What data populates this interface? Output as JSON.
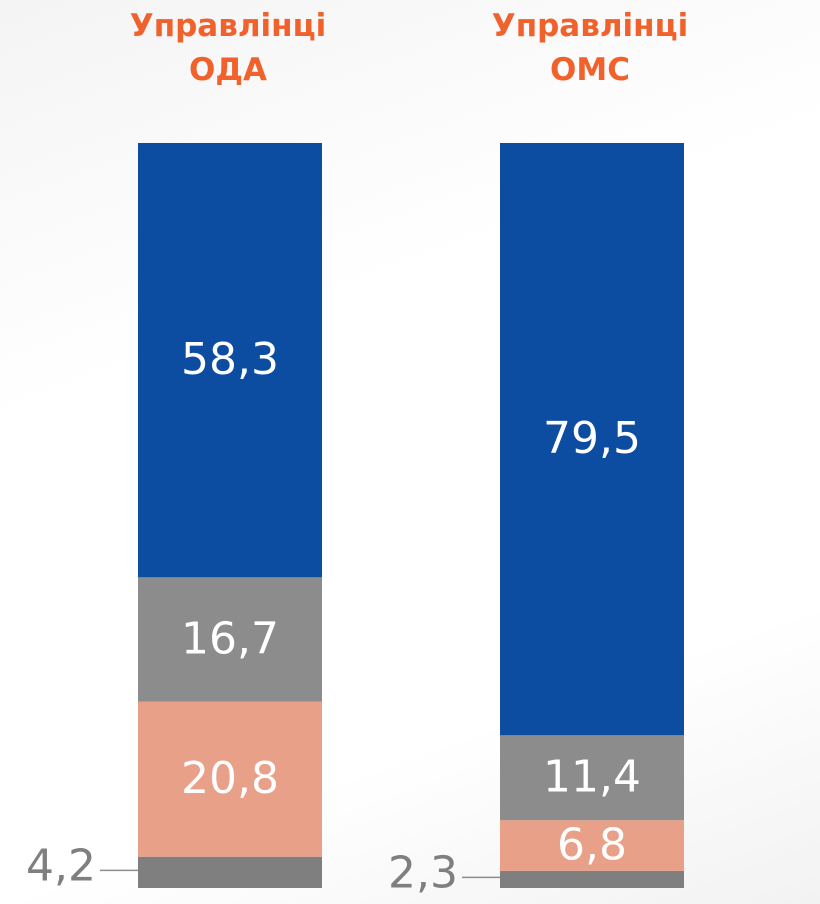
{
  "chart_data": {
    "type": "stacked_bar",
    "categories": [
      "Управлінці ОДА",
      "Управлінці ОМС"
    ],
    "series": [
      {
        "color": "#7f7f7f",
        "values": [
          4.2,
          2.3
        ],
        "value_labels": [
          "4,2",
          "2,3"
        ]
      },
      {
        "color": "#e9a088",
        "values": [
          20.8,
          6.8
        ],
        "value_labels": [
          "20,8",
          "6,8"
        ]
      },
      {
        "color": "#8c8c8c",
        "values": [
          16.7,
          11.4
        ],
        "value_labels": [
          "16,7",
          "11,4"
        ]
      },
      {
        "color": "#0c4da2",
        "values": [
          58.3,
          79.5
        ],
        "value_labels": [
          "58,3",
          "79,5"
        ]
      }
    ]
  }
}
